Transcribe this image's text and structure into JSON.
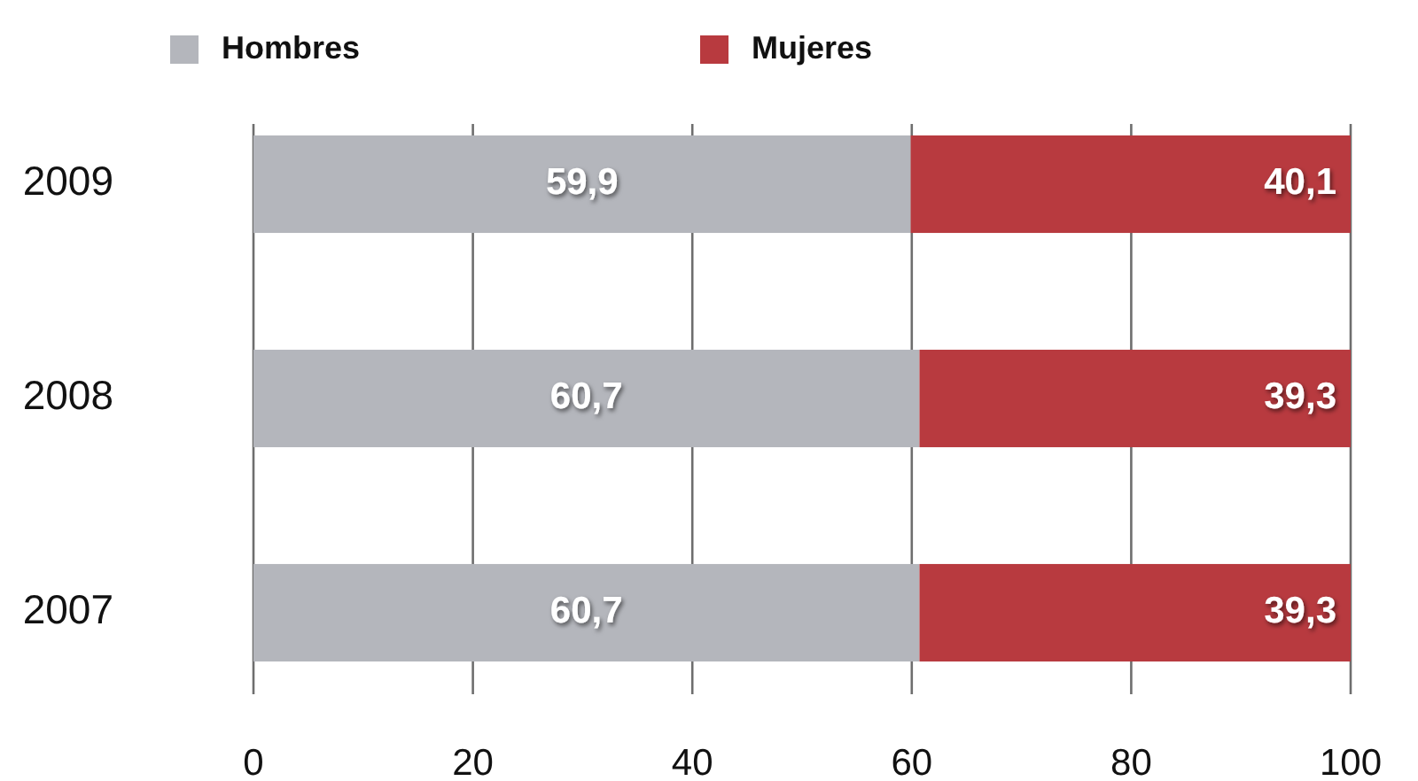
{
  "chart_data": {
    "type": "bar",
    "orientation": "horizontal",
    "stacked": true,
    "categories": [
      "2009",
      "2008",
      "2007"
    ],
    "series": [
      {
        "name": "Hombres",
        "color": "#b4b6bc",
        "values": [
          59.9,
          60.7,
          60.7
        ],
        "value_labels": [
          "59,9",
          "60,7",
          "60,7"
        ]
      },
      {
        "name": "Mujeres",
        "color": "#b83a3f",
        "values": [
          40.1,
          39.3,
          39.3
        ],
        "value_labels": [
          "40,1",
          "39,3",
          "39,3"
        ]
      }
    ],
    "xlim": [
      0,
      100
    ],
    "xticks": [
      0,
      20,
      40,
      60,
      80,
      100
    ],
    "grid": "x",
    "legend": "top left"
  }
}
